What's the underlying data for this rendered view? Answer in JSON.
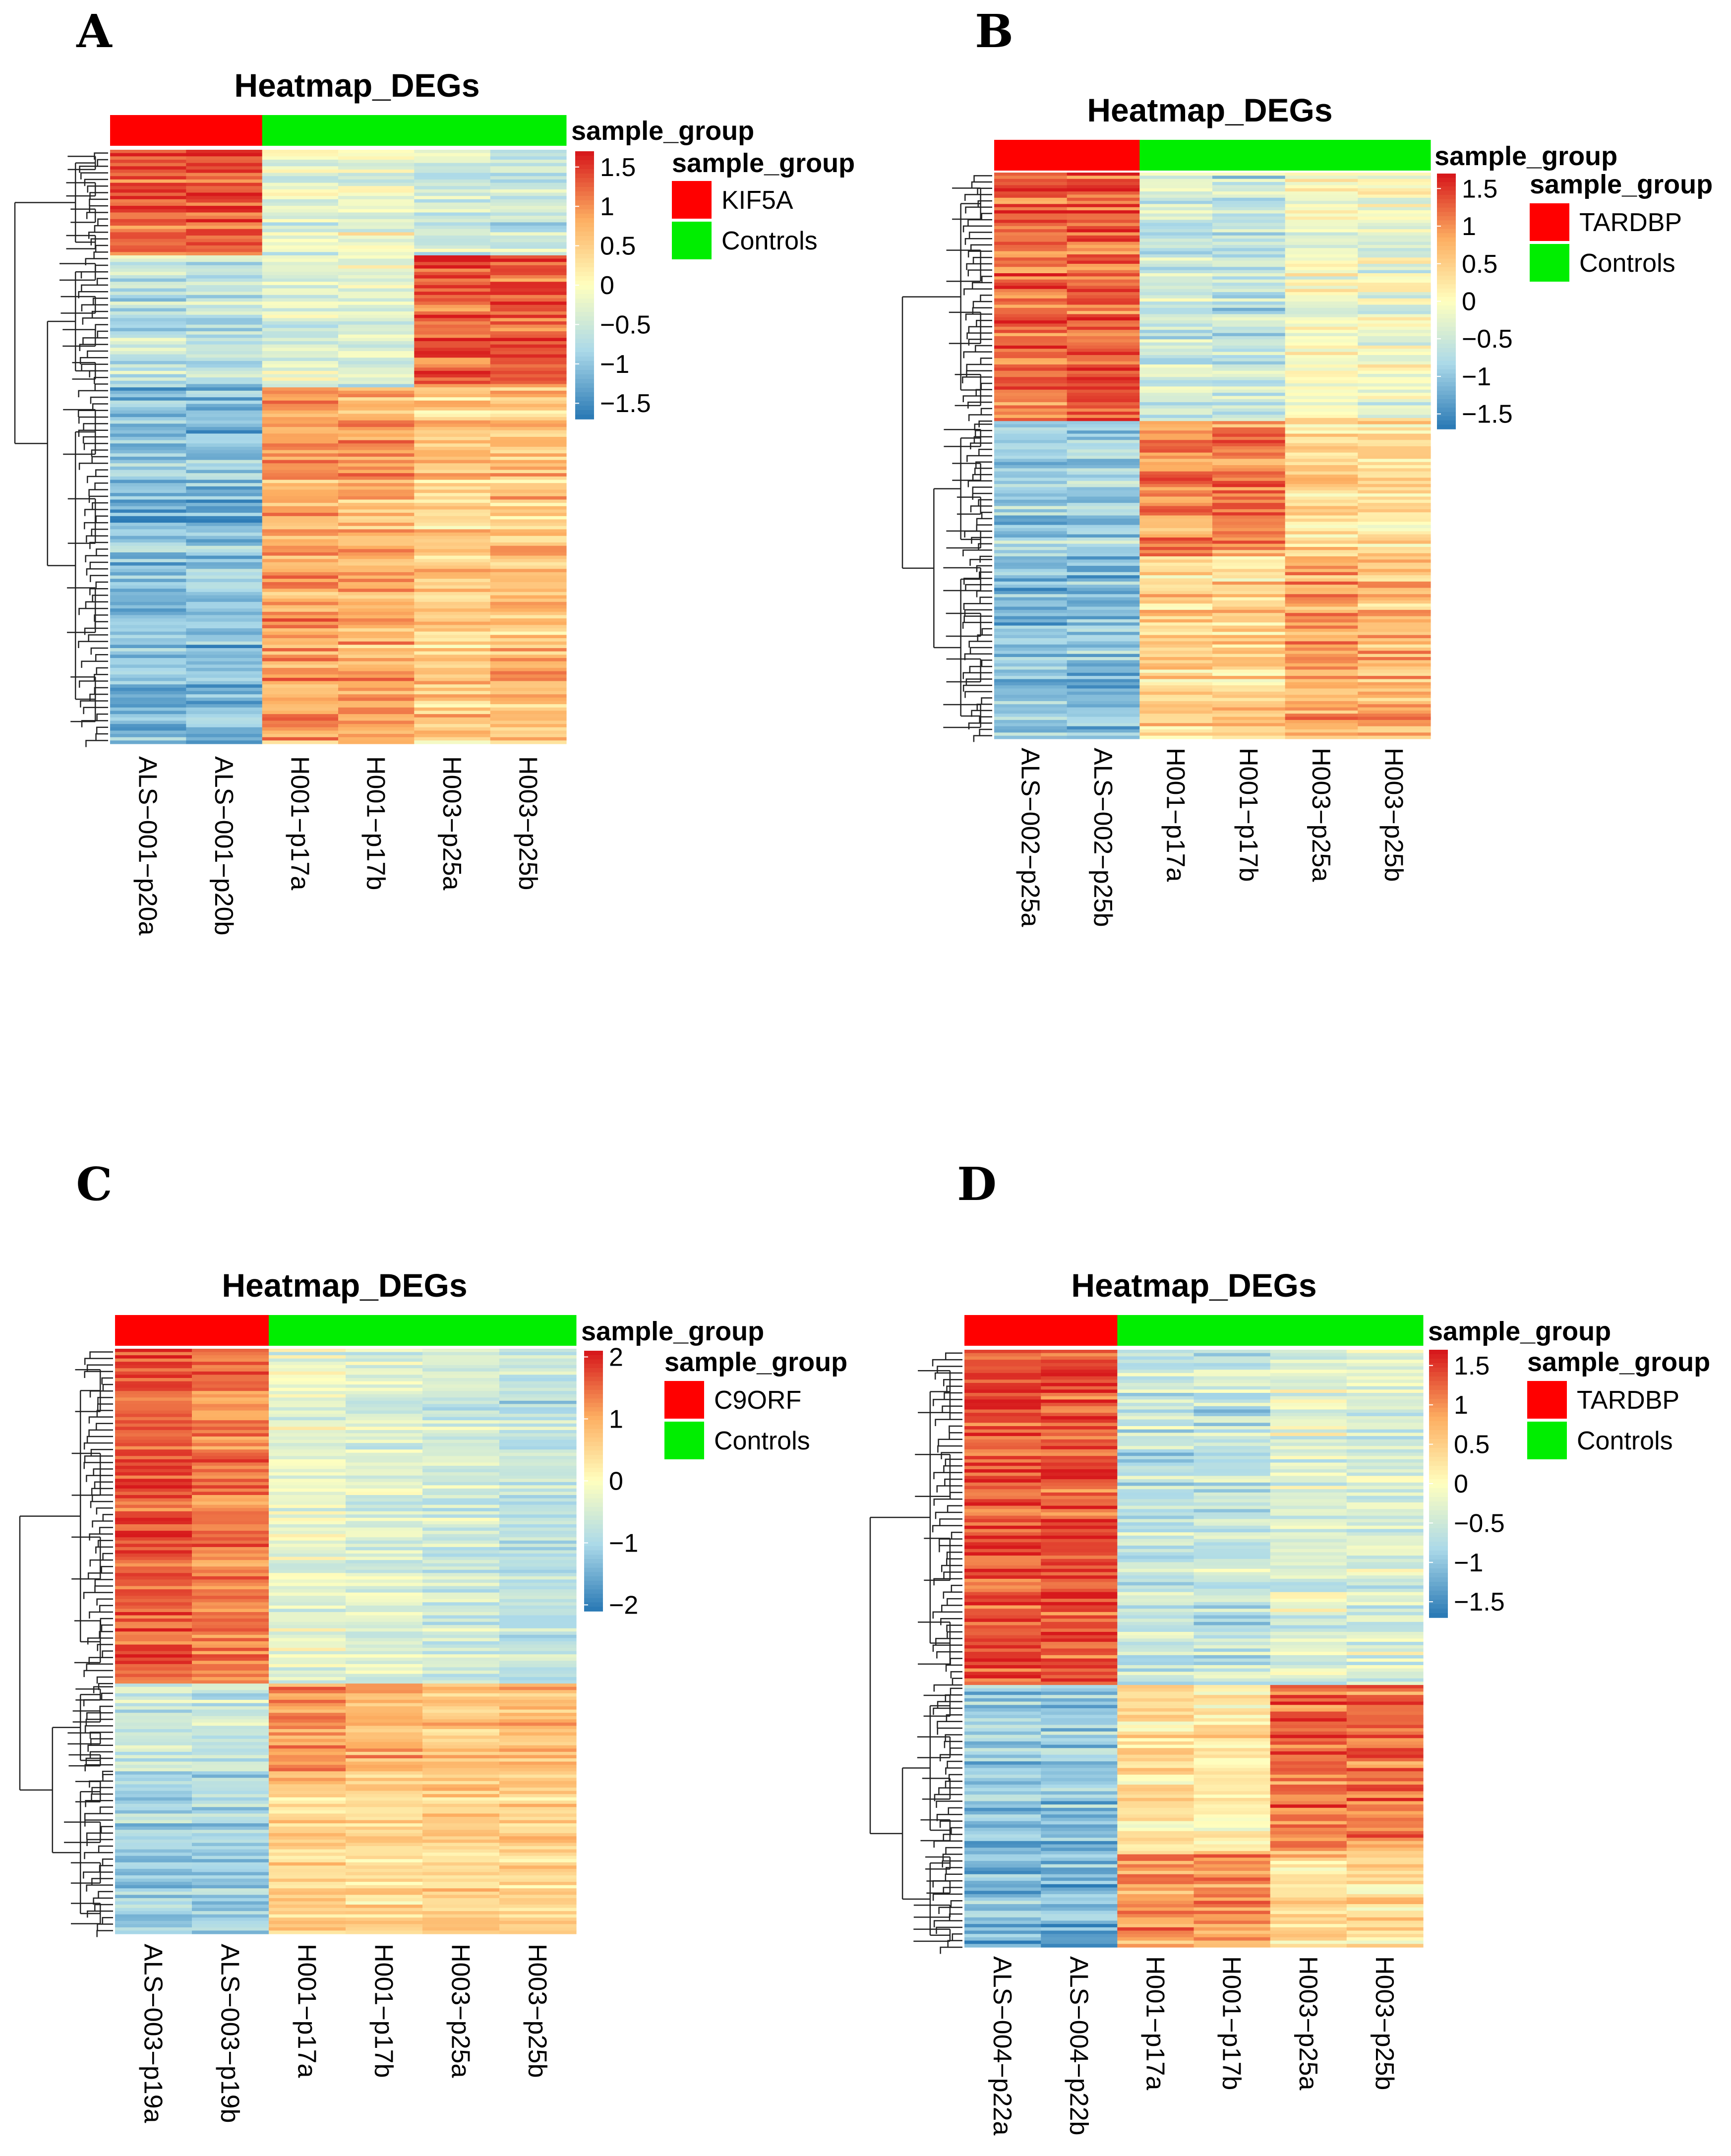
{
  "palette": {
    "low": "#2C7BB6",
    "lowmid": "#ABD9E9",
    "mid": "#FFFFBF",
    "highmid": "#FDAE61",
    "high": "#D7191C",
    "case": "#FF0000",
    "control": "#00EE00"
  },
  "chart_data": [
    {
      "type": "heatmap",
      "panel": "A",
      "title": "Heatmap_DEGs",
      "annotation_title": "sample_group",
      "legend_title": "sample_group",
      "groups": [
        {
          "label": "KIF5A",
          "color": "#FF0000"
        },
        {
          "label": "Controls",
          "color": "#00EE00"
        }
      ],
      "samples": [
        "ALS−001−p20a",
        "ALS−001−p20b",
        "H001−p17a",
        "H001−p17b",
        "H003−p25a",
        "H003−p25b"
      ],
      "sample_groups": [
        0,
        0,
        1,
        1,
        1,
        1
      ],
      "colorbar_range": [
        -1.7,
        1.7
      ],
      "colorbar_ticks": [
        {
          "label": "1.5",
          "value": 1.5
        },
        {
          "label": "1",
          "value": 1
        },
        {
          "label": "0.5",
          "value": 0.5
        },
        {
          "label": "0",
          "value": 0
        },
        {
          "label": "−0.5",
          "value": -0.5
        },
        {
          "label": "−1",
          "value": -1
        },
        {
          "label": "−1.5",
          "value": -1.5
        }
      ],
      "row_blocks": [
        {
          "fraction": 0.18,
          "values": [
            1.3,
            1.4,
            -0.3,
            -0.2,
            -0.5,
            -0.6
          ]
        },
        {
          "fraction": 0.22,
          "values": [
            -0.6,
            -0.6,
            -0.3,
            -0.3,
            1.35,
            1.35
          ]
        },
        {
          "fraction": 0.6,
          "values": [
            -1.1,
            -1.1,
            0.9,
            0.8,
            0.5,
            0.6
          ]
        }
      ]
    },
    {
      "type": "heatmap",
      "panel": "B",
      "title": "Heatmap_DEGs",
      "annotation_title": "sample_group",
      "legend_title": "sample_group",
      "groups": [
        {
          "label": "TARDBP",
          "color": "#FF0000"
        },
        {
          "label": "Controls",
          "color": "#00EE00"
        }
      ],
      "samples": [
        "ALS−002−p25a",
        "ALS−002−p25b",
        "H001−p17a",
        "H001−p17b",
        "H003−p25a",
        "H003−p25b"
      ],
      "sample_groups": [
        0,
        0,
        1,
        1,
        1,
        1
      ],
      "colorbar_range": [
        -1.7,
        1.7
      ],
      "colorbar_ticks": [
        {
          "label": "1.5",
          "value": 1.5
        },
        {
          "label": "1",
          "value": 1
        },
        {
          "label": "0.5",
          "value": 0.5
        },
        {
          "label": "0",
          "value": 0
        },
        {
          "label": "−0.5",
          "value": -0.5
        },
        {
          "label": "−1",
          "value": -1
        },
        {
          "label": "−1.5",
          "value": -1.5
        }
      ],
      "row_blocks": [
        {
          "fraction": 0.44,
          "values": [
            1.25,
            1.3,
            -0.5,
            -0.6,
            -0.1,
            -0.2
          ]
        },
        {
          "fraction": 0.24,
          "values": [
            -0.9,
            -0.9,
            1.0,
            1.1,
            0.4,
            0.4
          ]
        },
        {
          "fraction": 0.32,
          "values": [
            -1.1,
            -1.1,
            0.4,
            0.4,
            0.8,
            0.7
          ]
        }
      ]
    },
    {
      "type": "heatmap",
      "panel": "C",
      "title": "Heatmap_DEGs",
      "annotation_title": "sample_group",
      "legend_title": "sample_group",
      "groups": [
        {
          "label": "C9ORF",
          "color": "#FF0000"
        },
        {
          "label": "Controls",
          "color": "#00EE00"
        }
      ],
      "samples": [
        "ALS−003−p19a",
        "ALS−003−p19b",
        "H001−p17a",
        "H001−p17b",
        "H003−p25a",
        "H003−p25b"
      ],
      "sample_groups": [
        0,
        0,
        1,
        1,
        1,
        1
      ],
      "colorbar_range": [
        -2.1,
        2.1
      ],
      "colorbar_ticks": [
        {
          "label": "2",
          "value": 2
        },
        {
          "label": "1",
          "value": 1
        },
        {
          "label": "0",
          "value": 0
        },
        {
          "label": "−1",
          "value": -1
        },
        {
          "label": "−2",
          "value": -2
        }
      ],
      "row_blocks": [
        {
          "fraction": 0.57,
          "values": [
            1.7,
            1.4,
            -0.3,
            -0.4,
            -0.6,
            -0.8
          ]
        },
        {
          "fraction": 0.15,
          "values": [
            -0.7,
            -0.7,
            1.2,
            1.0,
            0.7,
            0.8
          ]
        },
        {
          "fraction": 0.28,
          "values": [
            -1.1,
            -1.1,
            0.6,
            0.5,
            0.6,
            0.6
          ]
        }
      ]
    },
    {
      "type": "heatmap",
      "panel": "D",
      "title": "Heatmap_DEGs",
      "annotation_title": "sample_group",
      "legend_title": "sample_group",
      "groups": [
        {
          "label": "TARDBP",
          "color": "#FF0000"
        },
        {
          "label": "Controls",
          "color": "#00EE00"
        }
      ],
      "samples": [
        "ALS−004−p22a",
        "ALS−004−p22b",
        "H001−p17a",
        "H001−p17b",
        "H003−p25a",
        "H003−p25b"
      ],
      "sample_groups": [
        0,
        0,
        1,
        1,
        1,
        1
      ],
      "colorbar_range": [
        -1.7,
        1.7
      ],
      "colorbar_ticks": [
        {
          "label": "1.5",
          "value": 1.5
        },
        {
          "label": "1",
          "value": 1
        },
        {
          "label": "0.5",
          "value": 0.5
        },
        {
          "label": "0",
          "value": 0
        },
        {
          "label": "−0.5",
          "value": -0.5
        },
        {
          "label": "−1",
          "value": -1
        },
        {
          "label": "−1.5",
          "value": -1.5
        }
      ],
      "row_blocks": [
        {
          "fraction": 0.56,
          "values": [
            1.4,
            1.4,
            -0.6,
            -0.6,
            -0.3,
            -0.4
          ]
        },
        {
          "fraction": 0.28,
          "values": [
            -1.0,
            -1.0,
            0.3,
            0.2,
            1.2,
            1.2
          ]
        },
        {
          "fraction": 0.16,
          "values": [
            -1.1,
            -1.2,
            0.9,
            1.0,
            0.4,
            0.4
          ]
        }
      ]
    }
  ]
}
